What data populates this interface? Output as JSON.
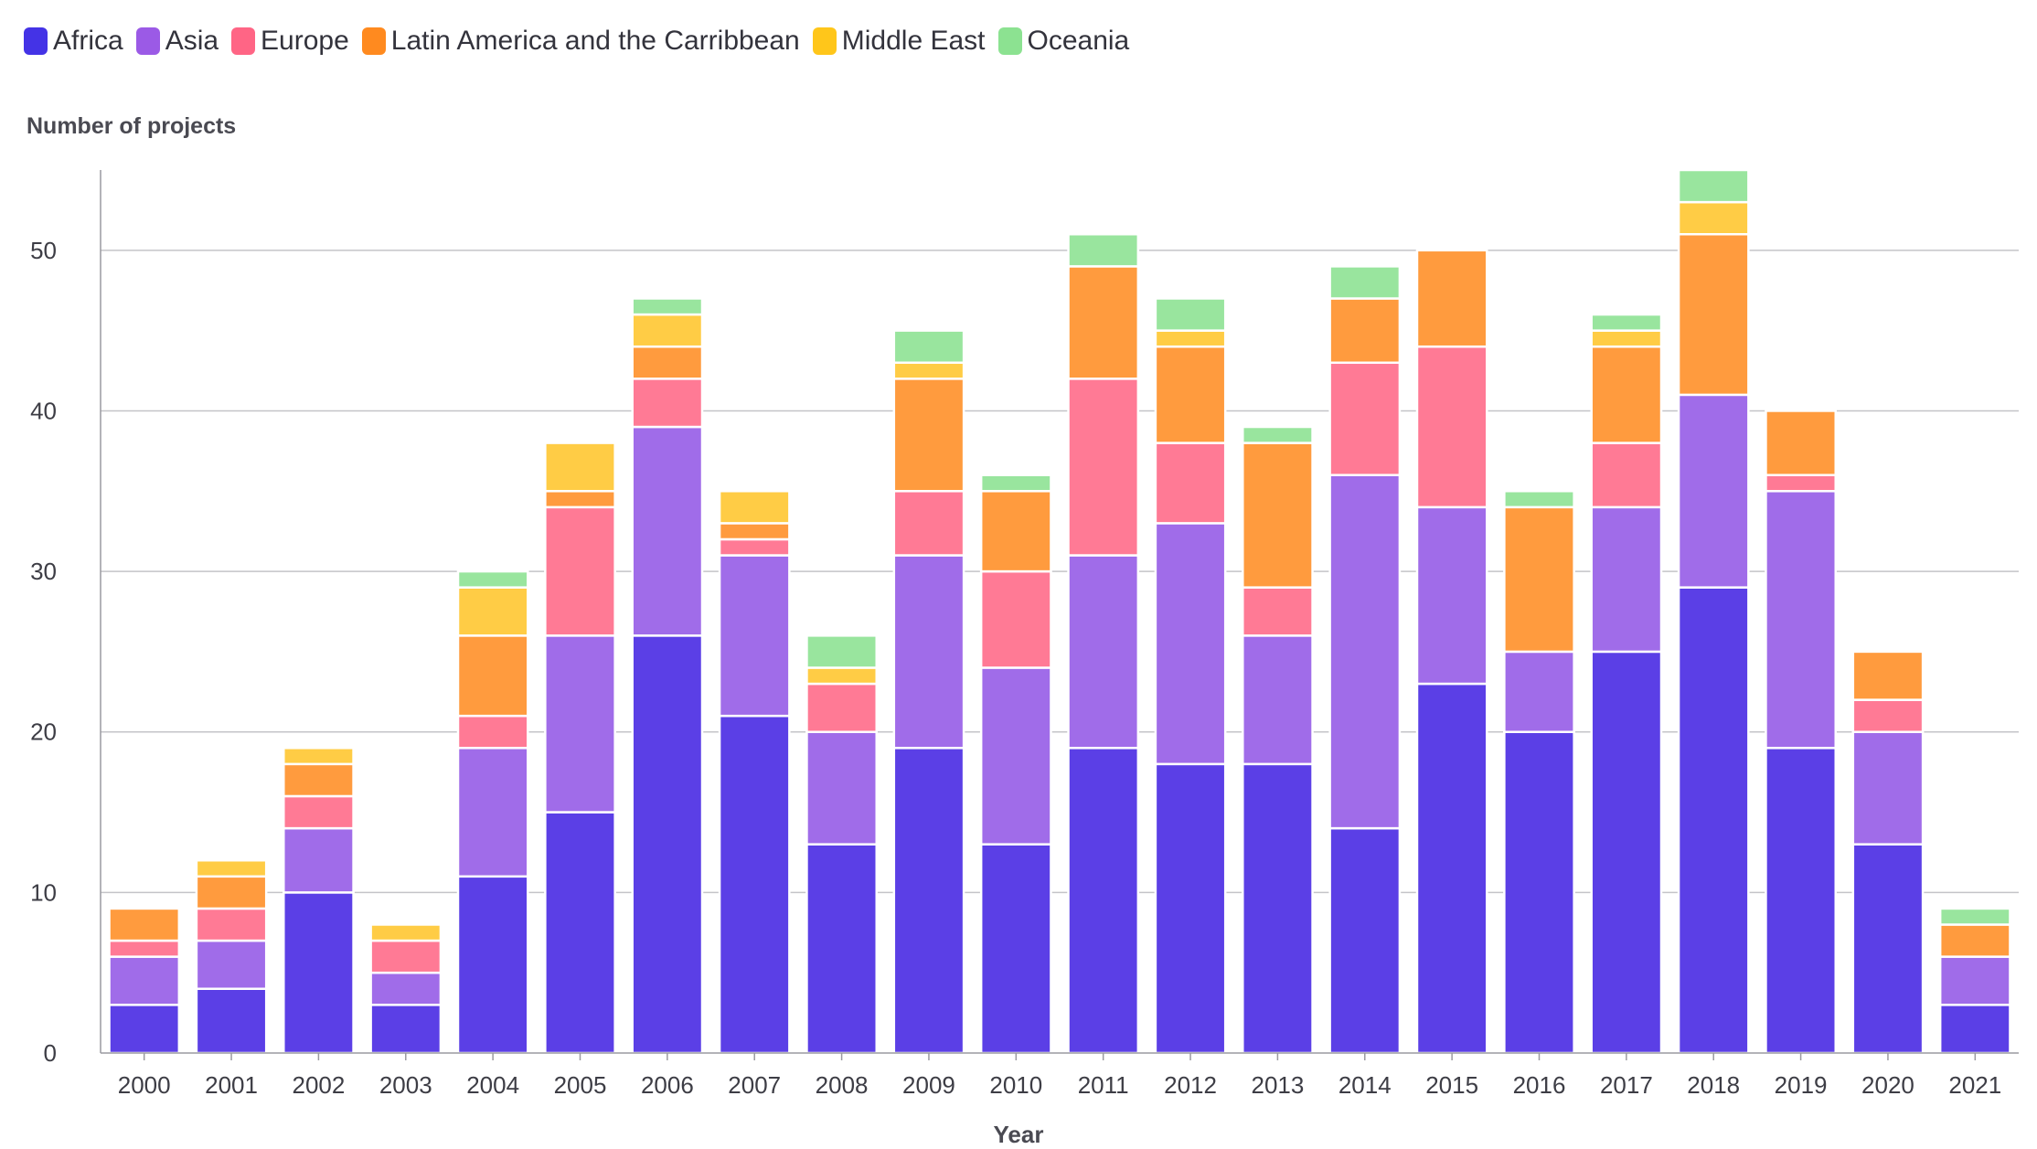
{
  "chart_data": {
    "type": "bar",
    "stacked": true,
    "title": "",
    "xlabel": "Year",
    "ylabel": "Number of projects",
    "ylim": [
      0,
      55
    ],
    "yticks": [
      0,
      10,
      20,
      30,
      40,
      50
    ],
    "grid": true,
    "legend_position": "top-left",
    "categories": [
      "2000",
      "2001",
      "2002",
      "2003",
      "2004",
      "2005",
      "2006",
      "2007",
      "2008",
      "2009",
      "2010",
      "2011",
      "2012",
      "2013",
      "2014",
      "2015",
      "2016",
      "2017",
      "2018",
      "2019",
      "2020",
      "2021"
    ],
    "series": [
      {
        "name": "Africa",
        "color": "#5b3fe6",
        "values": [
          3,
          4,
          10,
          3,
          11,
          15,
          26,
          21,
          13,
          19,
          13,
          19,
          18,
          18,
          14,
          23,
          20,
          25,
          29,
          19,
          13,
          3
        ]
      },
      {
        "name": "Asia",
        "color": "#a06ce9",
        "values": [
          3,
          3,
          4,
          2,
          8,
          11,
          13,
          10,
          7,
          12,
          11,
          12,
          15,
          8,
          22,
          11,
          5,
          9,
          12,
          16,
          7,
          3
        ]
      },
      {
        "name": "Europe",
        "color": "#ff7a95",
        "values": [
          1,
          2,
          2,
          2,
          2,
          8,
          3,
          1,
          3,
          4,
          6,
          11,
          5,
          3,
          7,
          10,
          0,
          4,
          0,
          1,
          2,
          0
        ]
      },
      {
        "name": "Latin America and the Carribbean",
        "color": "#ff9b3e",
        "values": [
          2,
          2,
          2,
          0,
          5,
          1,
          2,
          1,
          0,
          7,
          5,
          7,
          6,
          9,
          4,
          6,
          9,
          6,
          10,
          4,
          3,
          2
        ]
      },
      {
        "name": "Middle East",
        "color": "#ffcc45",
        "values": [
          0,
          1,
          1,
          1,
          3,
          3,
          2,
          2,
          1,
          1,
          0,
          0,
          1,
          0,
          0,
          0,
          0,
          1,
          2,
          0,
          0,
          0
        ]
      },
      {
        "name": "Oceania",
        "color": "#99e59e",
        "values": [
          0,
          0,
          0,
          0,
          1,
          0,
          1,
          0,
          2,
          2,
          1,
          2,
          2,
          1,
          2,
          0,
          1,
          1,
          2,
          0,
          0,
          1
        ]
      }
    ]
  }
}
